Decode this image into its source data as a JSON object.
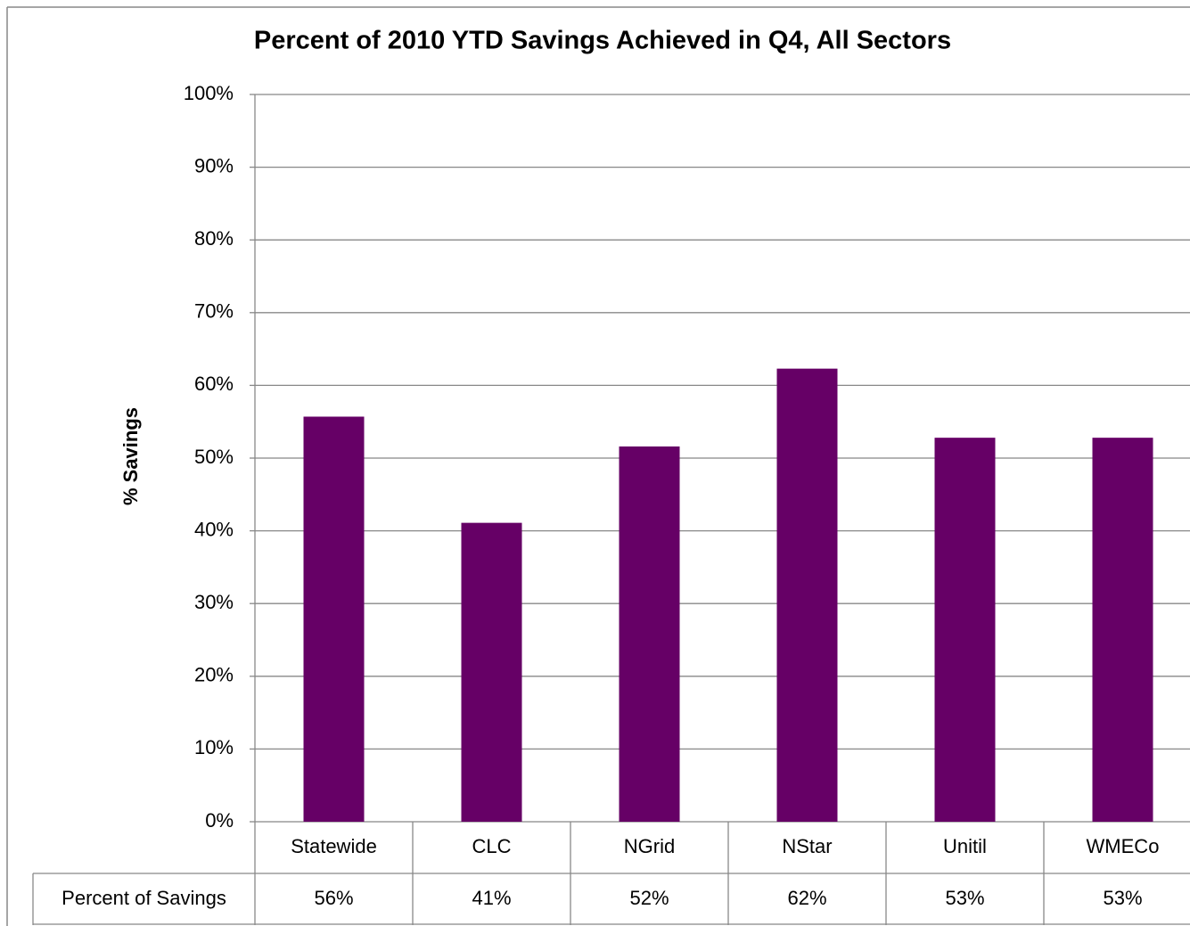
{
  "chart_data": {
    "type": "bar",
    "title": "Percent of 2010 YTD Savings Achieved in Q4, All Sectors",
    "y_label": "% Savings",
    "categories": [
      "Statewide",
      "CLC",
      "NGrid",
      "NStar",
      "Unitil",
      "WMECo"
    ],
    "series": [
      {
        "name": "Percent of Savings",
        "color": "#660066",
        "values": [
          55.7,
          41.1,
          51.6,
          62.3,
          52.8,
          52.8
        ],
        "value_labels": [
          "56%",
          "41%",
          "52%",
          "62%",
          "53%",
          "53%"
        ]
      }
    ],
    "ylim": [
      0,
      100
    ],
    "yticks": [
      {
        "value": 0,
        "label": "0%"
      },
      {
        "value": 10,
        "label": "10%"
      },
      {
        "value": 20,
        "label": "20%"
      },
      {
        "value": 30,
        "label": "30%"
      },
      {
        "value": 40,
        "label": "40%"
      },
      {
        "value": 50,
        "label": "50%"
      },
      {
        "value": 60,
        "label": "60%"
      },
      {
        "value": 70,
        "label": "70%"
      },
      {
        "value": 80,
        "label": "80%"
      },
      {
        "value": 90,
        "label": "90%"
      },
      {
        "value": 100,
        "label": "100%"
      }
    ],
    "grid": true
  }
}
